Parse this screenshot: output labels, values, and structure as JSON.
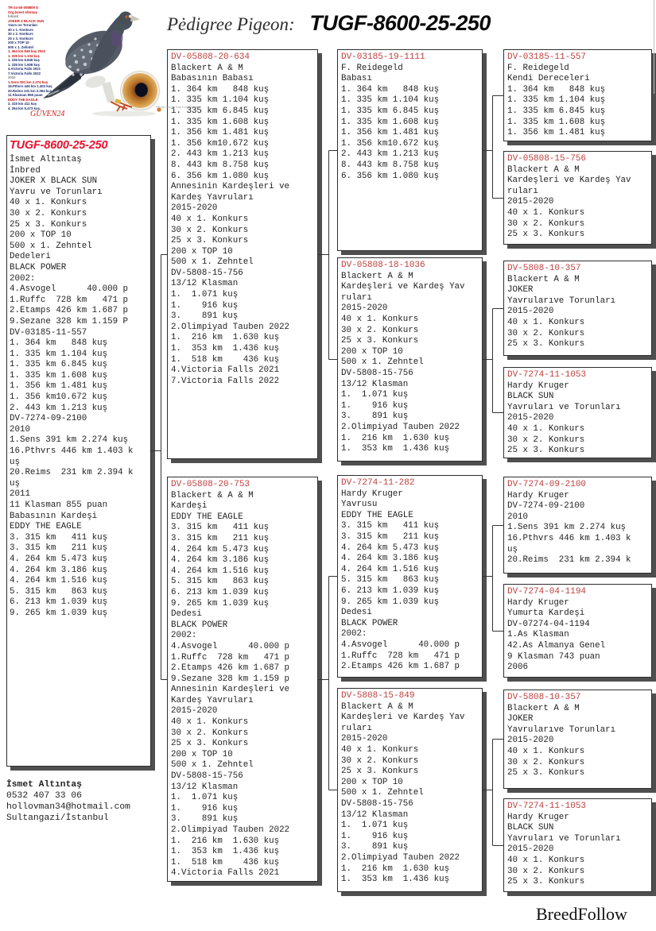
{
  "header": {
    "label": "Pėdigree Pigeon:",
    "ring": "TUGF-8600-25-250"
  },
  "photo": {
    "overlay_lines": [
      {
        "t": "TR-24-50-008809 D",
        "c": "red"
      },
      {
        "t": "Org.İsmet Altıntaş",
        "c": "red"
      },
      {
        "t": "İnbred",
        "c": "gray"
      },
      {
        "t": "JOKER X BLACK SUN",
        "c": "red"
      },
      {
        "t": "Yavru ve Torunları",
        "c": "navy"
      },
      {
        "t": "40 x 1. Konkurs",
        "c": "navy"
      },
      {
        "t": "30 x 2. Konkurs",
        "c": "navy"
      },
      {
        "t": "25 x 3. Konkurs",
        "c": "navy"
      },
      {
        "t": "200 x TOP 10",
        "c": "navy"
      },
      {
        "t": "500 x 1. Zehntel",
        "c": "navy"
      },
      {
        "t": "1. 364 km 848 kuş 2022",
        "c": "red"
      },
      {
        "t": "1. 335 km 1.104 kuş",
        "c": "red"
      },
      {
        "t": "1. 335 km 6.845 kuş",
        "c": "navy"
      },
      {
        "t": "1. 335 km 1.608 kuş",
        "c": "navy"
      },
      {
        "t": "4.Victoria Falls 2021",
        "c": "navy"
      },
      {
        "t": "7.Victoria Falls 2022",
        "c": "navy"
      },
      {
        "t": "2010",
        "c": "gray"
      },
      {
        "t": "1.Sens 391 km 2.274 kuş",
        "c": "red"
      },
      {
        "t": "16.Pthvrs 446 km 1.403 kuş",
        "c": "navy"
      },
      {
        "t": "20.Reims 231 km 2.394 kuş",
        "c": "navy"
      },
      {
        "t": "11 Klasman 855 puan",
        "c": "navy"
      },
      {
        "t": "EDDY THE EAGLE",
        "c": "red"
      },
      {
        "t": "3. 315 km 411 kuş",
        "c": "navy"
      },
      {
        "t": "4. 264 km 5.473 kuş",
        "c": "navy"
      }
    ],
    "logo": "GÜVEN24",
    "caption": "©Foto Günay Kuş Fotoğrafçılık"
  },
  "main_box": {
    "title": "TUGF-8600-25-250",
    "lines": [
      "İsmet Altıntaş",
      "İnbred",
      "JOKER X BLACK SUN",
      "Yavru ve Torunları",
      "40 x 1. Konkurs",
      "30 x 2. Konkurs",
      "25 x 3. Konkurs",
      "200 x TOP 10",
      "500 x 1. Zehntel",
      "Dedeleri",
      "BLACK POWER",
      "2002:",
      "4.Asvogel      40.000 p",
      "1.Ruffc  728 km   471 p",
      "2.Etamps 426 km 1.687 p",
      "9.Sezane 328 km 1.159 P",
      "DV-03185-11-557",
      "1. 364 km   848 kuş",
      "1. 335 km 1.104 kuş",
      "1. 335 km 6.845 kuş",
      "1. 335 km 1.608 kuş",
      "1. 356 km 1.481 kuş",
      "1. 356 km10.672 kuş",
      "2. 443 km 1.213 kuş",
      "DV-7274-09-2100",
      "2010",
      "1.Sens 391 km 2.274 kuş",
      "16.Pthvrs 446 km 1.403 k",
      "uş",
      "20.Reims  231 km 2.394 k",
      "uş",
      "2011",
      "11 Klasman 855 puan",
      "Babasının Kardeşi",
      "EDDY THE EAGLE",
      "3. 315 km   411 kuş",
      "3. 315 km   211 kuş",
      "4. 264 km 5.473 kuş",
      "4. 264 km 3.186 kuş",
      "4. 264 km 1.516 kuş",
      "5. 315 km   863 kuş",
      "6. 213 km 1.039 kuş",
      "9. 265 km 1.039 kuş"
    ]
  },
  "boxes": [
    {
      "id": "DV-05808-20-634",
      "lines": [
        "Blackert A & M",
        "Babasının Babası",
        "1. 364 km   848 kuş",
        "1. 335 km 1.104 kuş",
        "1. 335 km 6.845 kuş",
        "1. 335 km 1.608 kuş",
        "1. 356 km 1.481 kuş",
        "1. 356 km10.672 kuş",
        "2. 443 km 1.213 kuş",
        "8. 443 km 8.758 kuş",
        "6. 356 km 1.080 kuş",
        "Annesinin Kardeşleri ve",
        "Kardeş Yavruları",
        "2015-2020",
        "40 x 1. Konkurs",
        "30 x 2. Konkurs",
        "25 x 3. Konkurs",
        "200 x TOP 10",
        "500 x 1. Zehntel",
        "DV-5808-15-756",
        "13/12 Klasman",
        "1.  1.071 kuş",
        "1.    916 kuş",
        "3.    891 kuş",
        "2.Olimpiyad Tauben 2022",
        "1.  216 km  1.630 kuş",
        "1.  353 km  1.436 kuş",
        "1.  518 km    436 kuş",
        "4.Victoria Falls 2021",
        "7.Victoria Falls 2022"
      ]
    },
    {
      "id": "DV-05808-20-753",
      "lines": [
        "Blackert & A & M",
        "Kardeşi",
        "EDDY THE EAGLE",
        "3. 315 km   411 kuş",
        "3. 315 km   211 kuş",
        "4. 264 km 5.473 kuş",
        "4. 264 km 3.186 kuş",
        "4. 264 km 1.516 kuş",
        "5. 315 km   863 kuş",
        "6. 213 km 1.039 kuş",
        "9. 265 km 1.039 kuş",
        "Dedesi",
        "BLACK POWER",
        "2002:",
        "4.Asvogel      40.000 p",
        "1.Ruffc  728 km   471 p",
        "2.Etamps 426 km 1.687 p",
        "9.Sezane 328 km 1.159 p",
        "Annesinin Kardeşleri ve",
        "Kardeş Yavruları",
        "2015-2020",
        "40 x 1. Konkurs",
        "30 x 2. Konkurs",
        "25 x 3. Konkurs",
        "200 x TOP 10",
        "500 x 1. Zehntel",
        "DV-5808-15-756",
        "13/12 Klasman",
        "1.  1.071 kuş",
        "1.    916 kuş",
        "3.    891 kuş",
        "2.Olimpiyad Tauben 2022",
        "1.  216 km  1.630 kuş",
        "1.  353 km  1.436 kuş",
        "1.  518 km    436 kuş",
        "4.Victoria Falls 2021"
      ]
    },
    {
      "id": "DV-03185-19-1111",
      "lines": [
        "F. Reidegeld",
        "Babası",
        "1. 364 km   848 kuş",
        "1. 335 km 1.104 kuş",
        "1. 335 km 6.845 kuş",
        "1. 335 km 1.608 kuş",
        "1. 356 km 1.481 kuş",
        "1. 356 km10.672 kuş",
        "2. 443 km 1.213 kuş",
        "8. 443 km 8.758 kuş",
        "6. 356 km 1.080 kuş"
      ]
    },
    {
      "id": "DV-05808-18-1036",
      "lines": [
        "Blackert A & M",
        "Kardeşleri ve Kardeş Yav",
        "ruları",
        "2015-2020",
        "40 x 1. Konkurs",
        "30 x 2. Konkurs",
        "25 x 3. Konkurs",
        "200 x TOP 10",
        "500 x 1. Zehntel",
        "DV-5808-15-756",
        "13/12 Klasman",
        "1.  1.071 kuş",
        "1.    916 kuş",
        "3.    891 kuş",
        "2.Olimpiyad Tauben 2022",
        "1.  216 km  1.630 kuş",
        "1.  353 km  1.436 kuş"
      ]
    },
    {
      "id": "DV-7274-11-282",
      "lines": [
        "Hardy Kruger",
        "Yavrusu",
        "EDDY THE EAGLE",
        "3. 315 km   411 kuş",
        "3. 315 km   211 kuş",
        "4. 264 km 5.473 kuş",
        "4. 264 km 3.186 kuş",
        "4. 264 km 1.516 kuş",
        "5. 315 km   863 kuş",
        "6. 213 km 1.039 kuş",
        "9. 265 km 1.039 kuş",
        "Dedesi",
        "BLACK POWER",
        "2002:",
        "4.Asvogel      40.000 p",
        "1.Ruffc  728 km   471 p",
        "2.Etamps 426 km 1.687 p"
      ]
    },
    {
      "id": "DV-5808-15-849",
      "lines": [
        "Blackert A & M",
        "Kardeşleri ve Kardeş Yav",
        "ruları",
        "2015-2020",
        "40 x 1. Konkurs",
        "30 x 2. Konkurs",
        "25 x 3. Konkurs",
        "200 x TOP 10",
        "500 x 1. Zehntel",
        "DV-5808-15-756",
        "13/12 Klasman",
        "1.  1.071 kuş",
        "1.    916 kuş",
        "3.    891 kuş",
        "2.Olimpiyad Tauben 2022",
        "1.  216 km  1.630 kuş",
        "1.  353 km  1.436 kuş"
      ]
    },
    {
      "id": "DV-03185-11-557",
      "lines": [
        "F. Reidegeld",
        "Kendi Dereceleri",
        "1. 364 km   848 kuş",
        "1. 335 km 1.104 kuş",
        "1. 335 km 6.845 kuş",
        "1. 335 km 1.608 kuş",
        "1. 356 km 1.481 kuş"
      ]
    },
    {
      "id": "DV-05808-15-756",
      "lines": [
        "Blackert A & M",
        "Kardeşleri ve Kardeş Yav",
        "ruları",
        "2015-2020",
        "40 x 1. Konkurs",
        "30 x 2. Konkurs",
        "25 x 3. Konkurs"
      ]
    },
    {
      "id": "DV-5808-10-357",
      "lines": [
        "Blackert A & M",
        "JOKER",
        "Yavrularıve Torunları",
        "2015-2020",
        "40 x 1. Konkurs",
        "30 x 2. Konkurs",
        "25 x 3. Konkurs"
      ]
    },
    {
      "id": "DV-7274-11-1053",
      "lines": [
        "Hardy Kruger",
        "BLACK SUN",
        "Yavruları ve Torunları",
        "2015-2020",
        "40 x 1. Konkurs",
        "30 x 2. Konkurs",
        "25 x 3. Konkurs"
      ]
    },
    {
      "id": "DV-7274-09-2100",
      "lines": [
        "Hardy Kruger",
        "DV-7274-09-2100",
        "2010",
        "1.Sens 391 km 2.274 kuş",
        "16.Pthvrs 446 km 1.403 k",
        "uş",
        "20.Reims  231 km 2.394 k"
      ]
    },
    {
      "id": "DV-7274-04-1194",
      "lines": [
        "Hardy Kruger",
        "Yumurta Kardeşi",
        "DV-07274-04-1194",
        "1.As Klasman",
        "42.As Almanya Genel",
        "9 Klasman 743 puan",
        "2006"
      ]
    },
    {
      "id": "DV-5808-10-357",
      "lines": [
        "Blackert A & M",
        "JOKER",
        "Yavrularıve Torunları",
        "2015-2020",
        "40 x 1. Konkurs",
        "30 x 2. Konkurs",
        "25 x 3. Konkurs"
      ]
    },
    {
      "id": "DV-7274-11-1053",
      "lines": [
        "Hardy Kruger",
        "BLACK SUN",
        "Yavruları ve Torunları",
        "2015-2020",
        "40 x 1. Konkurs",
        "30 x 2. Konkurs",
        "25 x 3. Konkurs"
      ]
    }
  ],
  "contact": {
    "name": "İsmet Altıntaş",
    "phone": "0532 407 33 06",
    "email": "hollovman34@hotmail.com",
    "city": "Sultangazi/İstanbul"
  },
  "footer": {
    "brand": "BreedFollow"
  }
}
